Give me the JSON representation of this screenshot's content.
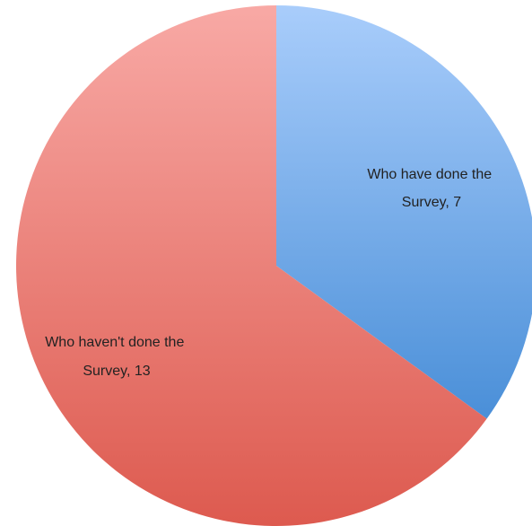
{
  "chart_data": {
    "type": "pie",
    "title": "",
    "slices": [
      {
        "category": "Who have done the Survey",
        "value": 7,
        "label_line1": "Who have done the",
        "label_line2": "Survey, 7",
        "color_top": "#a9cdfb",
        "color_bottom": "#4a8fd8"
      },
      {
        "category": "Who haven't done the Survey",
        "value": 13,
        "label_line1": "Who haven't done the",
        "label_line2": "Survey, 13",
        "color_top": "#f8a9a5",
        "color_bottom": "#dd5a4f"
      }
    ],
    "start_angle": "12 o'clock",
    "direction": "clockwise",
    "legend": "none"
  }
}
